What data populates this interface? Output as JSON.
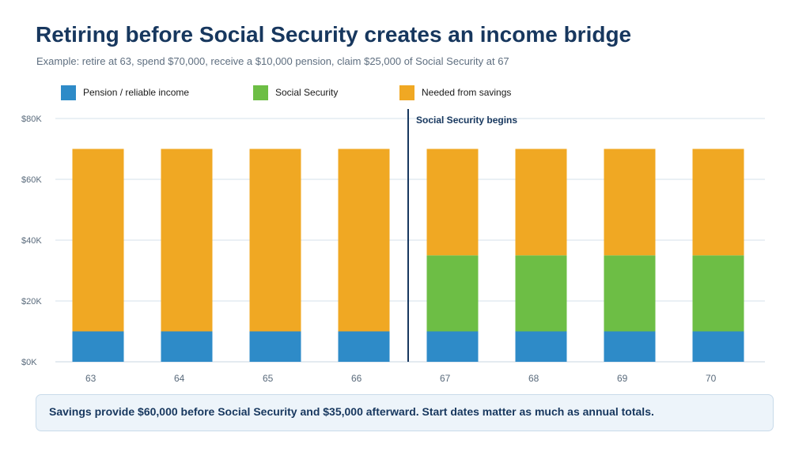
{
  "header": {
    "title": "Retiring before Social Security creates an income bridge",
    "subtitle": "Example: retire at 63, spend $70,000, receive a $10,000 pension, claim $25,000 of Social Security at 67"
  },
  "legend": [
    {
      "label": "Pension / reliable income",
      "color": "#2e8bc8"
    },
    {
      "label": "Social Security",
      "color": "#6dbe45"
    },
    {
      "label": "Needed from savings",
      "color": "#f0a823"
    }
  ],
  "chart_data": {
    "type": "bar",
    "stacked": true,
    "categories": [
      "63",
      "64",
      "65",
      "66",
      "67",
      "68",
      "69",
      "70"
    ],
    "series": [
      {
        "name": "Pension / reliable income",
        "color": "#2e8bc8",
        "values": [
          10000,
          10000,
          10000,
          10000,
          10000,
          10000,
          10000,
          10000
        ]
      },
      {
        "name": "Social Security",
        "color": "#6dbe45",
        "values": [
          0,
          0,
          0,
          0,
          25000,
          25000,
          25000,
          25000
        ]
      },
      {
        "name": "Needed from savings",
        "color": "#f0a823",
        "values": [
          60000,
          60000,
          60000,
          60000,
          35000,
          35000,
          35000,
          35000
        ]
      }
    ],
    "ylim": [
      0,
      80000
    ],
    "yticks": [
      0,
      20000,
      40000,
      60000,
      80000
    ],
    "ytick_labels": [
      "$0K",
      "$20K",
      "$40K",
      "$60K",
      "$80K"
    ],
    "grid": true,
    "legend_position": "top",
    "annotation": {
      "label": "Social Security begins",
      "between": [
        "66",
        "67"
      ]
    }
  },
  "callout": {
    "text": "Savings provide $60,000 before Social Security and $35,000 afterward. Start dates matter as much as annual totals."
  }
}
